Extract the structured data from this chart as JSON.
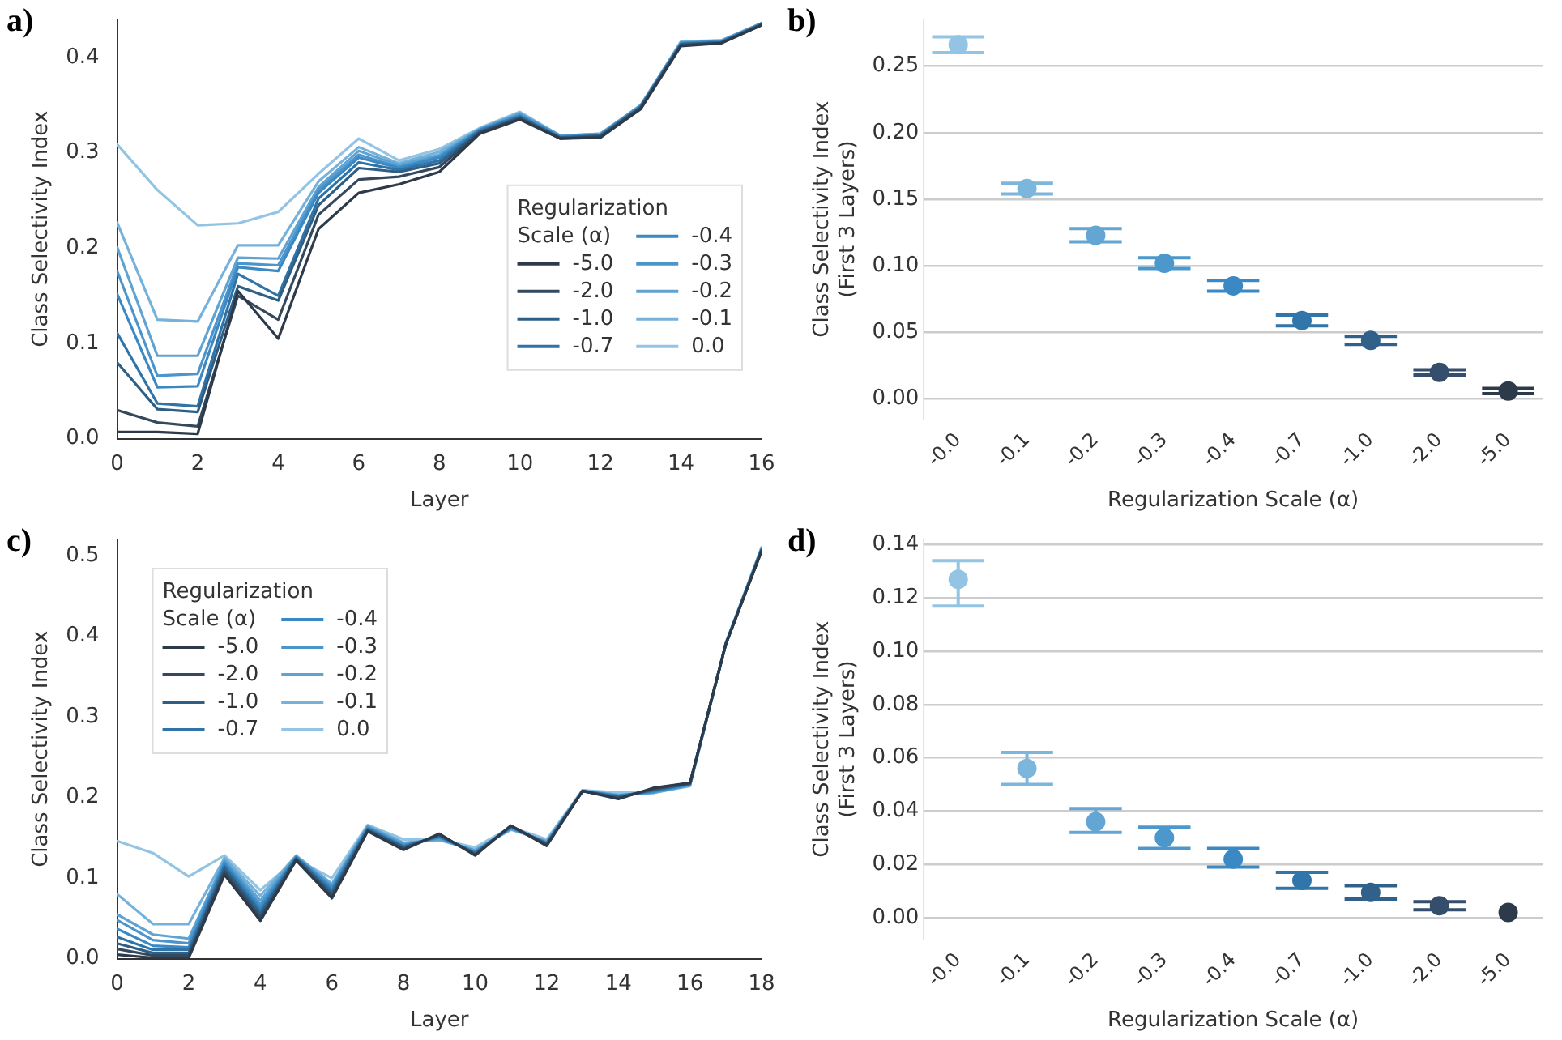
{
  "chart_data": [
    {
      "type": "line",
      "title": "a)",
      "xlabel": "Layer",
      "ylabel": "Class Selectivity Index",
      "legend": "right",
      "legend_title": "Regularization\nScale (α)",
      "grid": false,
      "x": [
        0,
        1,
        2,
        3,
        4,
        5,
        6,
        7,
        8,
        9,
        10,
        11,
        12,
        13,
        14,
        15,
        16
      ],
      "xlim": [
        0,
        16
      ],
      "xticks": [
        0,
        2,
        4,
        6,
        8,
        10,
        12,
        14,
        16
      ],
      "ylim": [
        0,
        0.44
      ],
      "yticks": [
        {
          "value": 0,
          "label": "0.0"
        },
        {
          "value": 0.1,
          "label": "0.1"
        },
        {
          "value": 0.2,
          "label": "0.2"
        },
        {
          "value": 0.3,
          "label": "0.3"
        },
        {
          "value": 0.4,
          "label": "0.4"
        }
      ],
      "series": [
        {
          "name": "-5.0",
          "color": "#2d3a4a",
          "values": [
            0.007,
            0.007,
            0.005,
            0.155,
            0.105,
            0.22,
            0.258,
            0.267,
            0.28,
            0.32,
            0.335,
            0.315,
            0.316,
            0.346,
            0.412,
            0.415,
            0.434
          ]
        },
        {
          "name": "-2.0",
          "color": "#34495e",
          "values": [
            0.03,
            0.017,
            0.013,
            0.15,
            0.125,
            0.235,
            0.272,
            0.275,
            0.285,
            0.321,
            0.336,
            0.315,
            0.317,
            0.347,
            0.413,
            0.415,
            0.434
          ]
        },
        {
          "name": "-1.0",
          "color": "#2e5f86",
          "values": [
            0.08,
            0.031,
            0.028,
            0.16,
            0.145,
            0.245,
            0.284,
            0.28,
            0.289,
            0.322,
            0.337,
            0.316,
            0.318,
            0.348,
            0.414,
            0.416,
            0.435
          ]
        },
        {
          "name": "-0.7",
          "color": "#2f74a8",
          "values": [
            0.111,
            0.037,
            0.034,
            0.173,
            0.15,
            0.252,
            0.29,
            0.282,
            0.292,
            0.323,
            0.338,
            0.316,
            0.318,
            0.348,
            0.414,
            0.416,
            0.435
          ]
        },
        {
          "name": "-0.4",
          "color": "#3a88c4",
          "values": [
            0.152,
            0.054,
            0.055,
            0.18,
            0.176,
            0.258,
            0.295,
            0.284,
            0.295,
            0.324,
            0.339,
            0.317,
            0.319,
            0.349,
            0.415,
            0.417,
            0.435
          ]
        },
        {
          "name": "-0.3",
          "color": "#4b95cc",
          "values": [
            0.176,
            0.066,
            0.068,
            0.184,
            0.182,
            0.261,
            0.298,
            0.285,
            0.296,
            0.324,
            0.34,
            0.317,
            0.319,
            0.349,
            0.415,
            0.417,
            0.436
          ]
        },
        {
          "name": "-0.2",
          "color": "#5fa3d3",
          "values": [
            0.201,
            0.087,
            0.087,
            0.19,
            0.189,
            0.264,
            0.302,
            0.287,
            0.298,
            0.325,
            0.341,
            0.318,
            0.32,
            0.35,
            0.416,
            0.417,
            0.436
          ]
        },
        {
          "name": "-0.1",
          "color": "#74b1db",
          "values": [
            0.227,
            0.125,
            0.123,
            0.203,
            0.203,
            0.27,
            0.306,
            0.289,
            0.301,
            0.325,
            0.342,
            0.318,
            0.32,
            0.35,
            0.416,
            0.418,
            0.436
          ]
        },
        {
          "name": "0.0",
          "color": "#93c4e3",
          "values": [
            0.309,
            0.261,
            0.224,
            0.226,
            0.238,
            0.278,
            0.315,
            0.292,
            0.304,
            0.326,
            0.343,
            0.318,
            0.318,
            0.349,
            0.417,
            0.418,
            0.436
          ]
        }
      ]
    },
    {
      "type": "scatter",
      "title": "b)",
      "xlabel": "Regularization Scale (α)",
      "ylabel": "Class Selectivity Index\n(First 3 Layers)",
      "grid": "y",
      "marker": "circle",
      "categories": [
        "-0.0",
        "-0.1",
        "-0.2",
        "-0.3",
        "-0.4",
        "-0.7",
        "-1.0",
        "-2.0",
        "-5.0"
      ],
      "values": [
        0.266,
        0.158,
        0.123,
        0.102,
        0.085,
        0.059,
        0.044,
        0.02,
        0.006
      ],
      "errors": [
        0.006,
        0.004,
        0.005,
        0.004,
        0.004,
        0.004,
        0.003,
        0.002,
        0.002
      ],
      "colors": [
        "#93c4e3",
        "#7cb6dc",
        "#63a6d4",
        "#4c98cc",
        "#3a88c4",
        "#3176aa",
        "#30618a",
        "#344e6c",
        "#2d3a4a"
      ],
      "ylim": [
        -0.015,
        0.285
      ],
      "yticks": [
        {
          "value": 0,
          "label": "0.00"
        },
        {
          "value": 0.05,
          "label": "0.05"
        },
        {
          "value": 0.1,
          "label": "0.10"
        },
        {
          "value": 0.15,
          "label": "0.15"
        },
        {
          "value": 0.2,
          "label": "0.20"
        },
        {
          "value": 0.25,
          "label": "0.25"
        }
      ]
    },
    {
      "type": "line",
      "title": "c)",
      "xlabel": "Layer",
      "ylabel": "Class Selectivity Index",
      "legend": "top left",
      "legend_title": "Regularization\nScale (α)",
      "grid": false,
      "x": [
        0,
        1,
        2,
        3,
        4,
        5,
        6,
        7,
        8,
        9,
        10,
        11,
        12,
        13,
        14,
        15,
        16,
        17,
        18
      ],
      "xlim": [
        0,
        18
      ],
      "xticks": [
        0,
        2,
        4,
        6,
        8,
        10,
        12,
        14,
        16,
        18
      ],
      "ylim": [
        0,
        0.52
      ],
      "yticks": [
        {
          "value": 0,
          "label": "0.0"
        },
        {
          "value": 0.1,
          "label": "0.1"
        },
        {
          "value": 0.2,
          "label": "0.2"
        },
        {
          "value": 0.3,
          "label": "0.3"
        },
        {
          "value": 0.4,
          "label": "0.4"
        },
        {
          "value": 0.5,
          "label": "0.5"
        }
      ],
      "series": [
        {
          "name": "-5.0",
          "color": "#2d3a4a",
          "values": [
            0.005,
            0.001,
            0.001,
            0.104,
            0.047,
            0.122,
            0.075,
            0.158,
            0.135,
            0.155,
            0.128,
            0.165,
            0.14,
            0.208,
            0.198,
            0.212,
            0.218,
            0.39,
            0.505
          ]
        },
        {
          "name": "-2.0",
          "color": "#34495e",
          "values": [
            0.012,
            0.004,
            0.004,
            0.108,
            0.051,
            0.123,
            0.078,
            0.159,
            0.136,
            0.154,
            0.129,
            0.165,
            0.141,
            0.208,
            0.199,
            0.211,
            0.218,
            0.39,
            0.506
          ]
        },
        {
          "name": "-1.0",
          "color": "#2e5f86",
          "values": [
            0.019,
            0.007,
            0.007,
            0.112,
            0.055,
            0.124,
            0.081,
            0.16,
            0.138,
            0.153,
            0.13,
            0.164,
            0.142,
            0.208,
            0.2,
            0.21,
            0.217,
            0.39,
            0.507
          ]
        },
        {
          "name": "-0.7",
          "color": "#2f74a8",
          "values": [
            0.027,
            0.011,
            0.011,
            0.115,
            0.059,
            0.125,
            0.084,
            0.161,
            0.139,
            0.152,
            0.131,
            0.164,
            0.143,
            0.208,
            0.201,
            0.209,
            0.217,
            0.39,
            0.507
          ]
        },
        {
          "name": "-0.4",
          "color": "#3a88c4",
          "values": [
            0.037,
            0.016,
            0.014,
            0.118,
            0.063,
            0.126,
            0.087,
            0.162,
            0.14,
            0.151,
            0.132,
            0.163,
            0.143,
            0.208,
            0.202,
            0.208,
            0.216,
            0.39,
            0.508
          ]
        },
        {
          "name": "-0.3",
          "color": "#4b95cc",
          "values": [
            0.048,
            0.023,
            0.019,
            0.12,
            0.067,
            0.126,
            0.089,
            0.163,
            0.141,
            0.15,
            0.133,
            0.162,
            0.144,
            0.208,
            0.202,
            0.207,
            0.216,
            0.39,
            0.508
          ]
        },
        {
          "name": "-0.2",
          "color": "#5fa3d3",
          "values": [
            0.055,
            0.03,
            0.025,
            0.122,
            0.072,
            0.127,
            0.091,
            0.164,
            0.143,
            0.148,
            0.134,
            0.161,
            0.145,
            0.208,
            0.203,
            0.206,
            0.215,
            0.39,
            0.509
          ]
        },
        {
          "name": "-0.1",
          "color": "#74b1db",
          "values": [
            0.08,
            0.043,
            0.043,
            0.125,
            0.078,
            0.128,
            0.093,
            0.165,
            0.144,
            0.147,
            0.135,
            0.16,
            0.146,
            0.209,
            0.203,
            0.206,
            0.215,
            0.39,
            0.51
          ]
        },
        {
          "name": "0.0",
          "color": "#93c4e3",
          "values": [
            0.146,
            0.131,
            0.102,
            0.128,
            0.085,
            0.123,
            0.1,
            0.166,
            0.148,
            0.148,
            0.138,
            0.163,
            0.148,
            0.209,
            0.206,
            0.206,
            0.214,
            0.392,
            0.51
          ]
        }
      ]
    },
    {
      "type": "scatter",
      "title": "d)",
      "xlabel": "Regularization Scale (α)",
      "ylabel": "Class Selectivity Index\n(First 3 Layers)",
      "grid": "y",
      "marker": "circle",
      "categories": [
        "-0.0",
        "-0.1",
        "-0.2",
        "-0.3",
        "-0.4",
        "-0.7",
        "-1.0",
        "-2.0",
        "-5.0"
      ],
      "values": [
        0.127,
        0.056,
        0.036,
        0.03,
        0.022,
        0.014,
        0.0095,
        0.0045,
        0.002
      ],
      "errors": [
        [
          0.117,
          0.134
        ],
        [
          0.05,
          0.062
        ],
        [
          0.032,
          0.041
        ],
        [
          0.026,
          0.034
        ],
        [
          0.019,
          0.026
        ],
        [
          0.011,
          0.017
        ],
        [
          0.007,
          0.012
        ],
        [
          0.003,
          0.006
        ],
        null
      ],
      "colors": [
        "#93c4e3",
        "#7cb6dc",
        "#63a6d4",
        "#4c98cc",
        "#3a88c4",
        "#3176aa",
        "#30618a",
        "#344e6c",
        "#2d3a4a"
      ],
      "ylim": [
        -0.008,
        0.142
      ],
      "yticks": [
        {
          "value": 0,
          "label": "0.00"
        },
        {
          "value": 0.02,
          "label": "0.02"
        },
        {
          "value": 0.04,
          "label": "0.04"
        },
        {
          "value": 0.06,
          "label": "0.06"
        },
        {
          "value": 0.08,
          "label": "0.08"
        },
        {
          "value": 0.1,
          "label": "0.10"
        },
        {
          "value": 0.12,
          "label": "0.12"
        },
        {
          "value": 0.14,
          "label": "0.14"
        }
      ]
    }
  ]
}
